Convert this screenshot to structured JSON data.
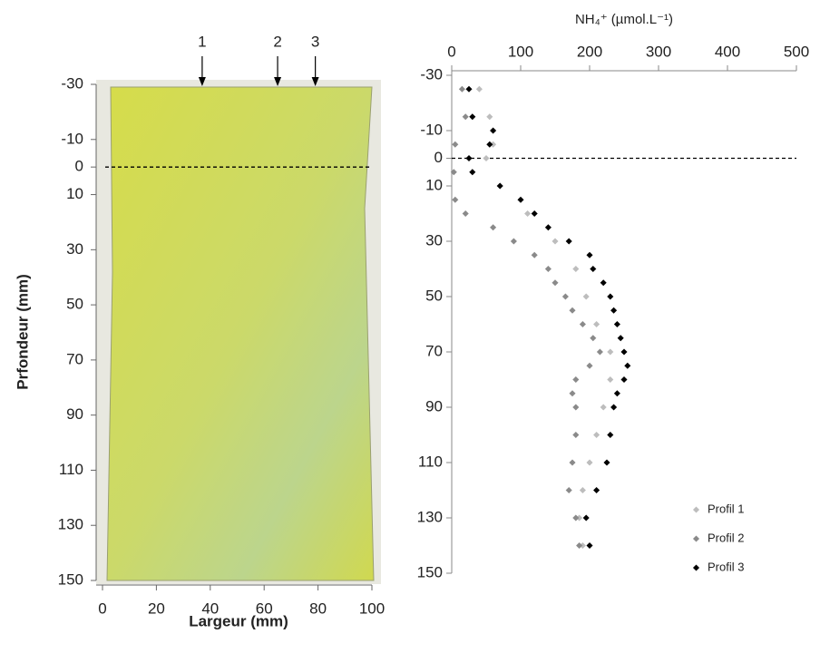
{
  "chart_data": [
    {
      "type": "image",
      "xlabel": "Largeur (mm)",
      "ylabel": "Prfondeur (mm)",
      "xlim": [
        0,
        100
      ],
      "xticks": [
        0,
        20,
        40,
        60,
        80,
        100
      ],
      "ylim": [
        -30,
        150
      ],
      "yticks": [
        -30,
        -10,
        0,
        10,
        30,
        50,
        70,
        90,
        110,
        130,
        150
      ],
      "hline": 0,
      "annotations": [
        {
          "label": "1",
          "x": 37
        },
        {
          "label": "2",
          "x": 65
        },
        {
          "label": "3",
          "x": 79
        }
      ]
    },
    {
      "type": "scatter",
      "xlabel": "NH₄⁺ (µmol.L⁻¹)",
      "xlim": [
        0,
        500
      ],
      "xticks": [
        0,
        100,
        200,
        300,
        400,
        500
      ],
      "ylim": [
        -30,
        150
      ],
      "yticks": [
        -30,
        -10,
        0,
        10,
        30,
        50,
        70,
        90,
        110,
        130,
        150
      ],
      "hline": 0,
      "legend": "bottom-right",
      "series": [
        {
          "name": "Profil 1",
          "color": "#bdbdbd",
          "x": [
            40,
            55,
            60,
            50,
            70,
            110,
            150,
            180,
            195,
            210,
            230,
            230,
            220,
            210,
            200,
            190,
            185,
            190
          ],
          "values": [
            -25,
            -15,
            -5,
            0,
            10,
            20,
            30,
            40,
            50,
            60,
            70,
            80,
            90,
            100,
            110,
            120,
            130,
            140
          ]
        },
        {
          "name": "Profil 2",
          "color": "#8a8a8a",
          "x": [
            15,
            20,
            5,
            3,
            5,
            20,
            60,
            90,
            120,
            140,
            150,
            165,
            175,
            190,
            205,
            215,
            200,
            180,
            175,
            180,
            180,
            175,
            170,
            180,
            185
          ],
          "values": [
            -25,
            -15,
            -5,
            5,
            15,
            20,
            25,
            30,
            35,
            40,
            45,
            50,
            55,
            60,
            65,
            70,
            75,
            80,
            85,
            90,
            100,
            110,
            120,
            130,
            140
          ]
        },
        {
          "name": "Profil 3",
          "color": "#000000",
          "x": [
            25,
            30,
            60,
            55,
            25,
            30,
            70,
            100,
            120,
            140,
            170,
            200,
            205,
            220,
            230,
            235,
            240,
            245,
            250,
            255,
            250,
            240,
            235,
            230,
            225,
            210,
            195,
            200
          ],
          "values": [
            -25,
            -15,
            -10,
            -5,
            0,
            5,
            10,
            15,
            20,
            25,
            30,
            35,
            40,
            45,
            50,
            55,
            60,
            65,
            70,
            75,
            80,
            85,
            90,
            100,
            110,
            120,
            130,
            140
          ]
        }
      ]
    }
  ]
}
